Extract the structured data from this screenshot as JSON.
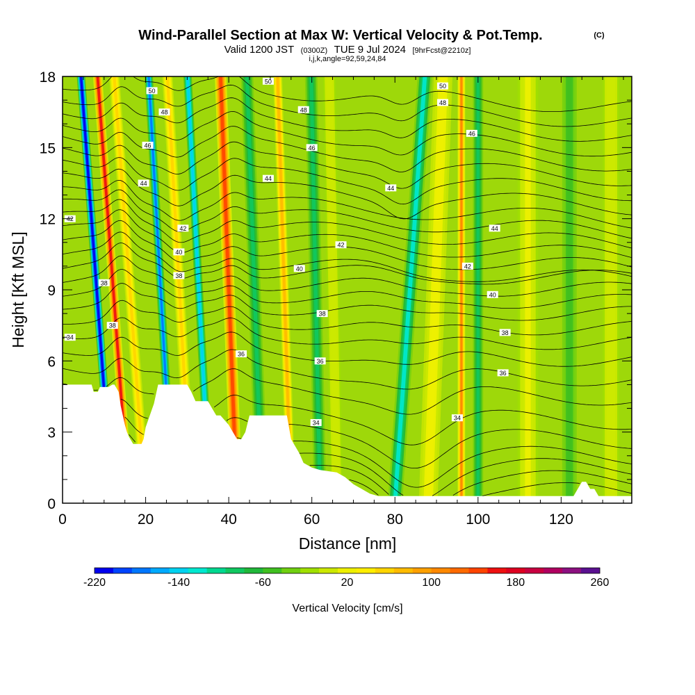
{
  "title": {
    "main": "Wind-Parallel Section at Max W: Vertical Velocity & Pot.Temp.",
    "mark": "(C)",
    "valid_prefix": "Valid 1200 JST",
    "valid_utc": "(0300Z)",
    "valid_date": "TUE 9 Jul 2024",
    "forecast": "[9hrFcst@2210z]",
    "params": "i,j,k,angle=92,59,24,84"
  },
  "chart_data": {
    "type": "heatmap",
    "xlabel": "Distance [nm]",
    "ylabel": "Height [Kft MSL]",
    "xlim": [
      0,
      137
    ],
    "ylim": [
      0,
      18
    ],
    "x_ticks": [
      0,
      20,
      40,
      60,
      80,
      100,
      120
    ],
    "y_ticks": [
      0,
      3,
      6,
      9,
      12,
      15,
      18
    ],
    "x_minor_step": 5,
    "y_minor_step": 1,
    "colorbar": {
      "label": "Vertical Velocity [cm/s]",
      "min": -220,
      "max": 260,
      "step": 20,
      "tick_values": [
        -220,
        -140,
        -60,
        20,
        100,
        180,
        260
      ],
      "tick_labels": [
        "-220",
        "-140",
        "-60",
        "20",
        "100",
        "180",
        "260"
      ],
      "colors": [
        "#0000ee",
        "#0044ff",
        "#0077ff",
        "#00aaff",
        "#00d2f0",
        "#00e8d0",
        "#00d890",
        "#10c860",
        "#20b83a",
        "#40c020",
        "#70d010",
        "#a0e000",
        "#cce800",
        "#eef000",
        "#ffee00",
        "#ffd500",
        "#ffbb00",
        "#ffa000",
        "#ff8800",
        "#ff6a00",
        "#ff4400",
        "#ee1010",
        "#dd0020",
        "#c80040",
        "#b00060",
        "#8c1080",
        "#5a1090"
      ]
    },
    "wind_bands": [
      {
        "x": 12.0,
        "w": 2.0,
        "value": -220,
        "tilt": 0.42
      },
      {
        "x": 16.0,
        "w": 2.2,
        "value": 200,
        "tilt": 0.42
      },
      {
        "x": 20.0,
        "w": 2.5,
        "value": 90,
        "tilt": 0.42
      },
      {
        "x": 26.5,
        "w": 2.0,
        "value": -170,
        "tilt": 0.32
      },
      {
        "x": 31.0,
        "w": 2.5,
        "value": 80,
        "tilt": 0.32
      },
      {
        "x": 35.5,
        "w": 2.0,
        "value": -140,
        "tilt": 0.3
      },
      {
        "x": 42.0,
        "w": 2.8,
        "value": 190,
        "tilt": 0.22
      },
      {
        "x": 48.0,
        "w": 3.0,
        "value": -70,
        "tilt": 0.2
      },
      {
        "x": 55.0,
        "w": 2.2,
        "value": 110,
        "tilt": 0.18
      },
      {
        "x": 62.0,
        "w": 3.0,
        "value": -70,
        "tilt": 0.12
      },
      {
        "x": 66.0,
        "w": 3.0,
        "value": 30,
        "tilt": 0.1
      },
      {
        "x": 80.0,
        "w": 3.5,
        "value": -110,
        "tilt": -0.4
      },
      {
        "x": 88.0,
        "w": 4.5,
        "value": 55,
        "tilt": -0.2
      },
      {
        "x": 96.0,
        "w": 1.8,
        "value": 140,
        "tilt": 0.0
      },
      {
        "x": 100.0,
        "w": 2.5,
        "value": -80,
        "tilt": 0.0
      },
      {
        "x": 112.0,
        "w": 5.0,
        "value": 40,
        "tilt": 0.0
      },
      {
        "x": 122.0,
        "w": 3.5,
        "value": -40,
        "tilt": 0.0
      },
      {
        "x": 132.0,
        "w": 4.0,
        "value": 30,
        "tilt": 0.0
      }
    ],
    "terrain": {
      "x": [
        0,
        7,
        7.5,
        8.5,
        9,
        11,
        12,
        12.5,
        13.5,
        14,
        15,
        15.5,
        16,
        17,
        18,
        19,
        19.5,
        20,
        22,
        23,
        30,
        31,
        32,
        35,
        36,
        37,
        38,
        40,
        41,
        42,
        43,
        44,
        45,
        48,
        54,
        55,
        56,
        57,
        58,
        60,
        62,
        66,
        68,
        70,
        72,
        74,
        76,
        80,
        84,
        86,
        90,
        94,
        100,
        108,
        116,
        123,
        124,
        125,
        126,
        127,
        128,
        129,
        130,
        137
      ],
      "y": [
        5.0,
        5.0,
        4.7,
        4.7,
        4.9,
        4.9,
        5.0,
        5.0,
        4.7,
        4.1,
        3.3,
        3.0,
        2.8,
        2.5,
        2.5,
        2.5,
        2.7,
        3.2,
        4.2,
        5.0,
        5.0,
        4.7,
        4.3,
        4.3,
        4.0,
        3.7,
        3.7,
        3.3,
        3.0,
        2.7,
        2.7,
        3.0,
        3.7,
        3.7,
        3.7,
        2.7,
        2.4,
        2.1,
        1.7,
        1.5,
        1.4,
        1.3,
        1.1,
        0.8,
        0.6,
        0.4,
        0.3,
        0.3,
        0.3,
        0.3,
        0.3,
        0.3,
        0.3,
        0.3,
        0.3,
        0.3,
        0.6,
        0.9,
        0.9,
        0.6,
        0.6,
        0.3,
        0.3,
        0.3
      ]
    },
    "theta_levels": [
      {
        "value": 34,
        "label": "34",
        "base": 1.0
      },
      {
        "value": 34,
        "label": "",
        "base": 1.5
      },
      {
        "value": 34,
        "label": "",
        "base": 2.0
      },
      {
        "value": 34,
        "label": "34",
        "base": 2.5
      },
      {
        "value": 35,
        "label": "",
        "base": 3.2
      },
      {
        "value": 35,
        "label": "",
        "base": 4.0
      },
      {
        "value": 36,
        "label": "36",
        "base": 5.0
      },
      {
        "value": 36,
        "label": "36",
        "base": 5.8
      },
      {
        "value": 37,
        "label": "",
        "base": 6.6
      },
      {
        "value": 38,
        "label": "38",
        "base": 7.3
      },
      {
        "value": 38,
        "label": "38",
        "base": 7.9
      },
      {
        "value": 39,
        "label": "",
        "base": 8.5
      },
      {
        "value": 40,
        "label": "40",
        "base": 9.0
      },
      {
        "value": 40,
        "label": "40",
        "base": 9.5
      },
      {
        "value": 41,
        "label": "",
        "base": 10.0
      },
      {
        "value": 42,
        "label": "42",
        "base": 10.5
      },
      {
        "value": 42,
        "label": "42",
        "base": 11.0
      },
      {
        "value": 43,
        "label": "",
        "base": 11.5
      },
      {
        "value": 44,
        "label": "44",
        "base": 12.0
      },
      {
        "value": 44,
        "label": "44",
        "base": 12.5
      },
      {
        "value": 45,
        "label": "",
        "base": 13.0
      },
      {
        "value": 46,
        "label": "46",
        "base": 13.6
      },
      {
        "value": 46,
        "label": "46",
        "base": 14.2
      },
      {
        "value": 47,
        "label": "",
        "base": 14.8
      },
      {
        "value": 48,
        "label": "48",
        "base": 15.4
      },
      {
        "value": 48,
        "label": "48",
        "base": 16.0
      },
      {
        "value": 49,
        "label": "",
        "base": 16.6
      },
      {
        "value": 50,
        "label": "50",
        "base": 17.2
      },
      {
        "value": 50,
        "label": "50",
        "base": 17.8
      }
    ],
    "inline_labels": [
      {
        "text": "34",
        "x": 1.8,
        "y": 7.0
      },
      {
        "text": "38",
        "x": 10.0,
        "y": 9.3
      },
      {
        "text": "38",
        "x": 12.0,
        "y": 7.5
      },
      {
        "text": "42",
        "x": 1.8,
        "y": 12.0
      },
      {
        "text": "50",
        "x": 21.5,
        "y": 17.4
      },
      {
        "text": "48",
        "x": 24.5,
        "y": 16.5
      },
      {
        "text": "46",
        "x": 20.5,
        "y": 15.1
      },
      {
        "text": "44",
        "x": 19.5,
        "y": 13.5
      },
      {
        "text": "42",
        "x": 29.0,
        "y": 11.6
      },
      {
        "text": "40",
        "x": 28.0,
        "y": 10.6
      },
      {
        "text": "38",
        "x": 28.0,
        "y": 9.6
      },
      {
        "text": "36",
        "x": 43.0,
        "y": 6.3
      },
      {
        "text": "50",
        "x": 49.5,
        "y": 17.8
      },
      {
        "text": "48",
        "x": 58.0,
        "y": 16.6
      },
      {
        "text": "46",
        "x": 60.0,
        "y": 15.0
      },
      {
        "text": "44",
        "x": 49.5,
        "y": 13.7
      },
      {
        "text": "42",
        "x": 67.0,
        "y": 10.9
      },
      {
        "text": "40",
        "x": 57.0,
        "y": 9.9
      },
      {
        "text": "38",
        "x": 62.5,
        "y": 8.0
      },
      {
        "text": "36",
        "x": 62.0,
        "y": 6.0
      },
      {
        "text": "34",
        "x": 61.0,
        "y": 3.4
      },
      {
        "text": "44",
        "x": 79.0,
        "y": 13.3
      },
      {
        "text": "50",
        "x": 91.5,
        "y": 17.6
      },
      {
        "text": "48",
        "x": 91.5,
        "y": 16.9
      },
      {
        "text": "46",
        "x": 98.5,
        "y": 15.6
      },
      {
        "text": "44",
        "x": 104.0,
        "y": 11.6
      },
      {
        "text": "42",
        "x": 97.5,
        "y": 10.0
      },
      {
        "text": "40",
        "x": 103.5,
        "y": 8.8
      },
      {
        "text": "38",
        "x": 106.5,
        "y": 7.2
      },
      {
        "text": "36",
        "x": 106.0,
        "y": 5.5
      },
      {
        "text": "34",
        "x": 95.0,
        "y": 3.6
      }
    ]
  }
}
